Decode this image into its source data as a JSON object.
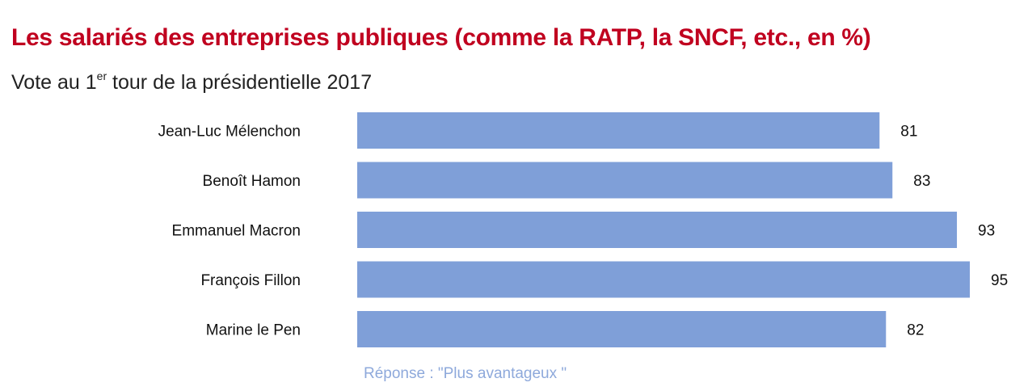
{
  "title": "Les salariés des entreprises publiques (comme la RATP, la SNCF, etc., en %)",
  "subtitle": {
    "prefix": "Vote au 1",
    "sup": "er",
    "suffix": " tour de la présidentielle 2017"
  },
  "note": "Réponse : \"Plus avantageux \"",
  "colors": {
    "bar": "#7F9FD8",
    "title": "#C0001F",
    "note": "#8EA9DB"
  },
  "chart_data": {
    "type": "bar",
    "orientation": "horizontal",
    "categories": [
      "Jean-Luc Mélenchon",
      "Benoît Hamon",
      "Emmanuel Macron",
      "François Fillon",
      "Marine le Pen"
    ],
    "values": [
      81,
      83,
      93,
      95,
      82
    ],
    "title": "Les salariés des entreprises publiques (comme la RATP, la SNCF, etc., en %)",
    "xlabel": "",
    "ylabel": "",
    "xlim": [
      0,
      95
    ],
    "grid": false,
    "legend": "none"
  }
}
